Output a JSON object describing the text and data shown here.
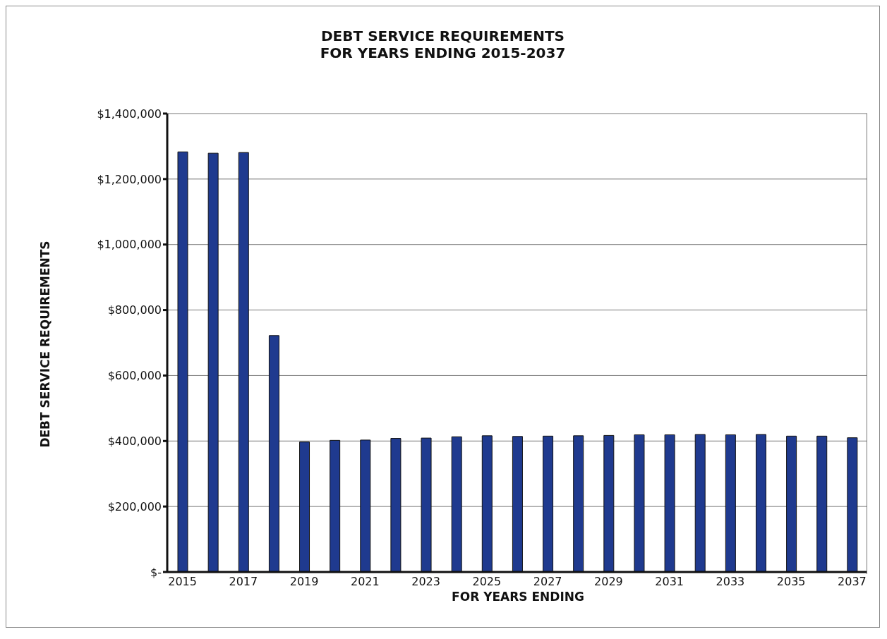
{
  "chart_data": {
    "type": "bar",
    "title": "DEBT SERVICE REQUIREMENTS\nFOR YEARS ENDING 2015-2037",
    "xlabel": "FOR YEARS ENDING",
    "ylabel": "DEBT SERVICE REQUIREMENTS",
    "categories": [
      "2015",
      null,
      "2017",
      null,
      "2019",
      null,
      "2021",
      null,
      "2023",
      null,
      "2025",
      null,
      "2027",
      null,
      "2029",
      null,
      "2031",
      null,
      "2033",
      null,
      "2035",
      null,
      "2037"
    ],
    "values": [
      1283000,
      1279000,
      1281000,
      722000,
      397000,
      402000,
      403000,
      408000,
      409000,
      413000,
      416000,
      414000,
      415000,
      416000,
      417000,
      419000,
      419000,
      420000,
      419000,
      420000,
      415000,
      415000,
      410000
    ],
    "color": "#1f3a8f",
    "ylim": [
      0,
      1400000
    ],
    "yticks": [
      {
        "value": 0,
        "label": "$-"
      },
      {
        "value": 200000,
        "label": "$200,000"
      },
      {
        "value": 400000,
        "label": "$400,000"
      },
      {
        "value": 600000,
        "label": "$600,000"
      },
      {
        "value": 800000,
        "label": "$800,000"
      },
      {
        "value": 1000000,
        "label": "$1,000,000"
      },
      {
        "value": 1200000,
        "label": "$1,200,000"
      },
      {
        "value": 1400000,
        "label": "$1,400,000"
      }
    ],
    "grid": "y"
  }
}
